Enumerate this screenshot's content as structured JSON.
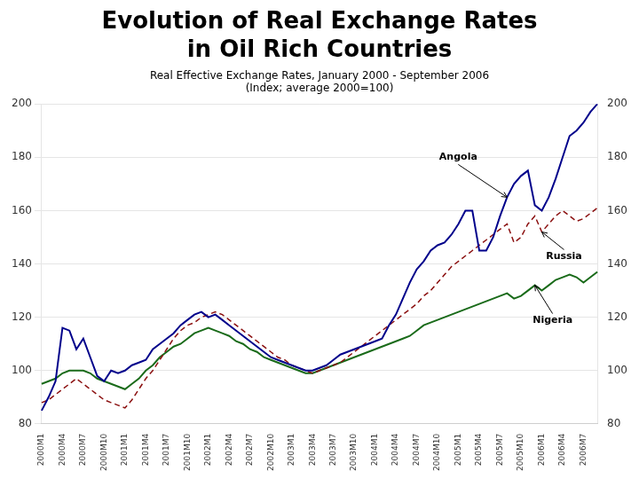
{
  "chart_data": {
    "type": "line",
    "title": [
      "Evolution of Real Exchange Rates",
      "in Oil Rich Countries"
    ],
    "subtitle": [
      "Real Effective Exchange Rates, January 2000 - September 2006",
      "(Index; average 2000=100)"
    ],
    "categories": [
      "2000M1",
      null,
      null,
      "2000M4",
      null,
      null,
      "2000M7",
      null,
      null,
      "2000M10",
      null,
      null,
      "2001M1",
      null,
      null,
      "2001M4",
      null,
      null,
      "2001M7",
      null,
      null,
      "2001M10",
      null,
      null,
      "2002M1",
      null,
      null,
      "2002M4",
      null,
      null,
      "2002M7",
      null,
      null,
      "2002M10",
      null,
      null,
      "2003M1",
      null,
      null,
      "2003M4",
      null,
      null,
      "2003M7",
      null,
      null,
      "2003M10",
      null,
      null,
      "2004M1",
      null,
      null,
      "2004M4",
      null,
      null,
      "2004M7",
      null,
      null,
      "2004M10",
      null,
      null,
      "2005M1",
      null,
      null,
      "2005M4",
      null,
      null,
      "2005M7",
      null,
      null,
      "2005M10",
      null,
      null,
      "2006M1",
      null,
      null,
      "2006M4",
      null,
      null,
      "2006M7",
      null,
      null
    ],
    "series": [
      {
        "color": "#00008B",
        "line_style": "solid",
        "values": [
          85,
          90,
          96,
          116,
          115,
          108,
          112,
          105,
          98,
          96,
          100,
          99,
          100,
          102,
          103,
          104,
          108,
          110,
          112,
          114,
          117,
          119,
          121,
          122,
          120,
          121,
          119,
          117,
          115,
          113,
          111,
          109,
          107,
          105,
          104,
          103,
          102,
          101,
          100,
          100,
          101,
          102,
          104,
          106,
          107,
          108,
          109,
          110,
          111,
          112,
          117,
          121,
          127,
          133,
          138,
          141,
          145,
          147,
          148,
          151,
          155,
          160,
          160,
          145,
          145,
          150,
          158,
          165,
          170,
          173,
          175,
          162,
          160,
          165,
          172,
          180,
          188,
          190,
          193,
          197,
          200
        ]
      },
      {
        "color": "#8B1010",
        "line_style": "dashed",
        "values": [
          88,
          89,
          91,
          93,
          95,
          97,
          95,
          93,
          91,
          89,
          88,
          87,
          86,
          89,
          93,
          97,
          100,
          104,
          108,
          112,
          115,
          117,
          118,
          120,
          121,
          122,
          121,
          119,
          117,
          115,
          113,
          111,
          109,
          107,
          105,
          104,
          102,
          101,
          100,
          99,
          100,
          101,
          102,
          103,
          105,
          107,
          109,
          111,
          113,
          115,
          117,
          119,
          121,
          123,
          125,
          128,
          130,
          133,
          136,
          139,
          141,
          143,
          145,
          147,
          149,
          151,
          153,
          155,
          148,
          150,
          155,
          158,
          152,
          155,
          158,
          160,
          158,
          156,
          157,
          159,
          161
        ]
      },
      {
        "color": "#1a6b1a",
        "line_style": "solid",
        "values": [
          95,
          96,
          97,
          99,
          100,
          100,
          100,
          99,
          97,
          96,
          95,
          94,
          93,
          95,
          97,
          100,
          102,
          105,
          107,
          109,
          110,
          112,
          114,
          115,
          116,
          115,
          114,
          113,
          111,
          110,
          108,
          107,
          105,
          104,
          103,
          102,
          101,
          100,
          99,
          99,
          100,
          101,
          102,
          103,
          104,
          105,
          106,
          107,
          108,
          109,
          110,
          111,
          112,
          113,
          115,
          117,
          118,
          119,
          120,
          121,
          122,
          123,
          124,
          125,
          126,
          127,
          128,
          129,
          127,
          128,
          130,
          132,
          130,
          132,
          134,
          135,
          136,
          135,
          133,
          135,
          137
        ]
      }
    ],
    "annotations": [
      {
        "text": "Angola",
        "x": 67,
        "y": 165
      },
      {
        "text": "Russia",
        "x": 72,
        "y": 152
      },
      {
        "text": "Nigeria",
        "x": 71,
        "y": 132
      }
    ],
    "ylim": [
      80,
      200
    ],
    "yticks": [
      80,
      100,
      120,
      140,
      160,
      180,
      200
    ],
    "y2lim": [
      80,
      200
    ],
    "y2ticks": [
      80,
      100,
      120,
      140,
      160,
      180,
      200
    ],
    "grid": true
  }
}
